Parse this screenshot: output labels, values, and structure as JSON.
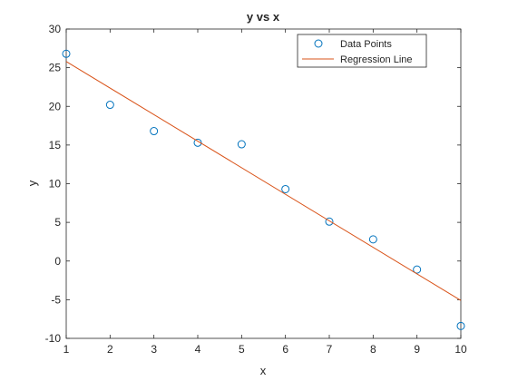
{
  "chart_data": {
    "type": "scatter",
    "title": "y vs x",
    "xlabel": "x",
    "ylabel": "y",
    "xlim": [
      1,
      10
    ],
    "ylim": [
      -10,
      30
    ],
    "xticks": [
      1,
      2,
      3,
      4,
      5,
      6,
      7,
      8,
      9,
      10
    ],
    "yticks": [
      -10,
      -5,
      0,
      5,
      10,
      15,
      20,
      25,
      30
    ],
    "grid": false,
    "legend_position": "top-right",
    "series": [
      {
        "name": "Data Points",
        "kind": "scatter",
        "marker": "circle",
        "color": "#0072BD",
        "x": [
          1,
          2,
          3,
          4,
          5,
          6,
          7,
          8,
          9,
          10
        ],
        "y": [
          26.8,
          20.2,
          16.8,
          15.3,
          15.1,
          9.3,
          5.1,
          2.8,
          -1.1,
          -8.4
        ]
      },
      {
        "name": "Regression Line",
        "kind": "line",
        "color": "#D95319",
        "x": [
          1,
          10
        ],
        "y": [
          25.8,
          -5.1
        ]
      }
    ]
  }
}
